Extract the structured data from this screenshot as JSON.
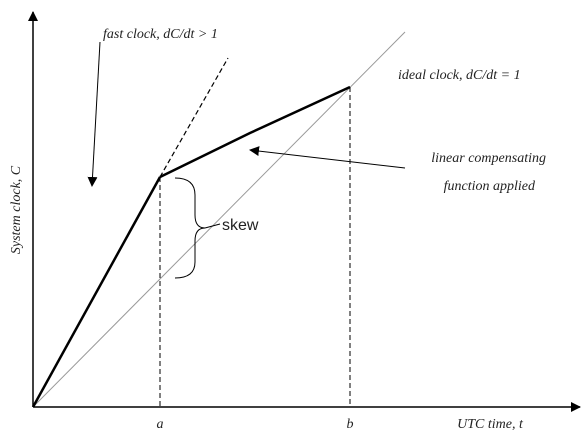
{
  "labels": {
    "fast_clock": "fast clock, dC/dt > 1",
    "ideal_clock": "ideal clock, dC/dt = 1",
    "compensating_line1": "linear compensating",
    "compensating_line2": "function applied",
    "skew": "skew",
    "y_axis": "System clock, C",
    "x_axis": "UTC time, t",
    "a": "a",
    "b": "b"
  }
}
